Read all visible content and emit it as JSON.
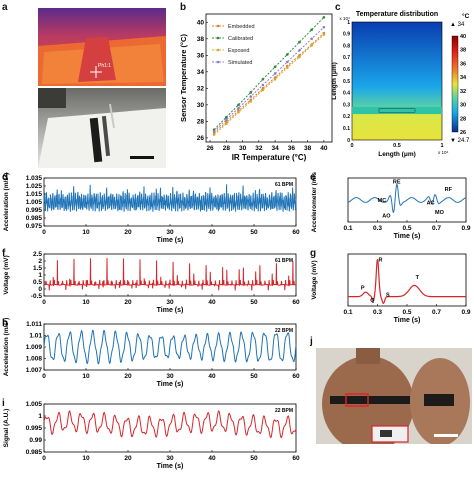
{
  "panel_labels": {
    "a": "a",
    "b": "b",
    "c": "c",
    "d": "d",
    "e": "e",
    "f": "f",
    "g": "g",
    "h": "h",
    "i": "i",
    "j": "j"
  },
  "photo_a": {
    "marker_text": "Ph1:1"
  },
  "chart_data": [
    {
      "id": "b",
      "type": "line",
      "xlabel": "IR Temperature (°C)",
      "ylabel": "Sensor Temperature (°C)",
      "xlim": [
        25.5,
        41
      ],
      "ylim": [
        25.5,
        41
      ],
      "xticks": [
        "26",
        "28",
        "30",
        "32",
        "34",
        "36",
        "38",
        "40"
      ],
      "yticks": [
        "26",
        "28",
        "30",
        "32",
        "34",
        "36",
        "38",
        "40"
      ],
      "legend_position": "top-left",
      "x": [
        26.5,
        28,
        29.5,
        31,
        32.5,
        34,
        35.5,
        37,
        38.5,
        40
      ],
      "series": [
        {
          "name": "Embedded",
          "color": "#e87b2e",
          "values": [
            26.6,
            27.9,
            29.3,
            30.6,
            32.0,
            33.3,
            34.7,
            36.0,
            37.3,
            38.7
          ]
        },
        {
          "name": "Calibrated",
          "color": "#2e8b3a",
          "values": [
            27.0,
            28.5,
            30.0,
            31.5,
            33.1,
            34.6,
            36.1,
            37.6,
            39.1,
            40.6
          ]
        },
        {
          "name": "Exposed",
          "color": "#d6a92a",
          "values": [
            26.4,
            27.7,
            29.1,
            30.4,
            31.8,
            33.1,
            34.5,
            35.8,
            37.2,
            38.5
          ]
        },
        {
          "name": "Simulated",
          "color": "#8a7fcf",
          "values": [
            26.8,
            28.2,
            29.6,
            31.0,
            32.4,
            33.8,
            35.2,
            36.6,
            38.0,
            39.4
          ]
        }
      ]
    },
    {
      "id": "c",
      "type": "heatmap",
      "title": "Temperature distribution",
      "xlabel": "Length (μm)",
      "ylabel": "Length (μm)",
      "x_exponent": "x 10⁴",
      "y_exponent": "x 10⁴",
      "xticks": [
        "0",
        "0.5",
        "1"
      ],
      "yticks": [
        "0",
        "0.1",
        "0.2",
        "0.3",
        "0.4",
        "0.5",
        "0.6",
        "0.7",
        "0.8",
        "0.9",
        "1"
      ],
      "colorbar": {
        "unit": "°C",
        "max_label": "▲ 34",
        "min_label": "▼ 24.7",
        "ticks": [
          "40",
          "38",
          "36",
          "34",
          "32",
          "30",
          "28",
          "26"
        ]
      }
    },
    {
      "id": "d",
      "type": "line",
      "xlabel": "Time (s)",
      "ylabel": "Acceleration (m/s²)",
      "xticks": [
        "0",
        "10",
        "20",
        "30",
        "40",
        "50",
        "60"
      ],
      "yticks": [
        "1.035",
        "1.025",
        "1.015",
        "1.005",
        "0.995",
        "0.985",
        "0.975"
      ],
      "annotation": "61 BPM",
      "color": "#1f73b7",
      "ylim": [
        0.975,
        1.035
      ],
      "rate_bpm": 61,
      "amp": 0.015,
      "center": 1.005
    },
    {
      "id": "e",
      "type": "line",
      "xlabel": "Time (s)",
      "ylabel": "Accelerometer (m/s²)",
      "xticks": [
        "0.1",
        "0.3",
        "0.5",
        "0.7",
        "0.9"
      ],
      "annotations": [
        "MC",
        "AO",
        "RE",
        "AC",
        "MO",
        "RF"
      ],
      "color": "#1f73b7"
    },
    {
      "id": "f",
      "type": "line",
      "xlabel": "Time (s)",
      "ylabel": "Voltage (mV)",
      "xticks": [
        "0",
        "10",
        "20",
        "30",
        "40",
        "50",
        "60"
      ],
      "yticks": [
        "2.5",
        "2",
        "1.5",
        "1",
        "0.5",
        "0",
        "-0.5"
      ],
      "annotation": "61 BPM",
      "color": "#d6262b",
      "ylim": [
        -0.5,
        2.5
      ],
      "rate_bpm": 61
    },
    {
      "id": "g",
      "type": "line",
      "xlabel": "Time (s)",
      "ylabel": "Voltage (mV)",
      "xticks": [
        "0.1",
        "0.3",
        "0.5",
        "0.7",
        "0.9"
      ],
      "annotations": [
        "P",
        "Q",
        "R",
        "S",
        "T"
      ],
      "color": "#d6262b"
    },
    {
      "id": "h",
      "type": "line",
      "xlabel": "Time (s)",
      "ylabel": "Acceleration (m/s²)",
      "xticks": [
        "0",
        "10",
        "20",
        "30",
        "40",
        "50",
        "60"
      ],
      "yticks": [
        "1.011",
        "1.01",
        "1.009",
        "1.008",
        "1.007"
      ],
      "annotation": "22 BPM",
      "color": "#1f73b7",
      "ylim": [
        1.007,
        1.011
      ],
      "rate_bpm": 22
    },
    {
      "id": "i",
      "type": "line",
      "xlabel": "Time (s)",
      "ylabel": "Signal (A.U.)",
      "xticks": [
        "0",
        "10",
        "20",
        "30",
        "40",
        "50",
        "60"
      ],
      "yticks": [
        "1.005",
        "1",
        "0.995",
        "0.99",
        "0.985"
      ],
      "annotation": "22 BPM",
      "color": "#d6262b",
      "ylim": [
        0.985,
        1.005
      ],
      "rate_bpm": 22
    }
  ]
}
